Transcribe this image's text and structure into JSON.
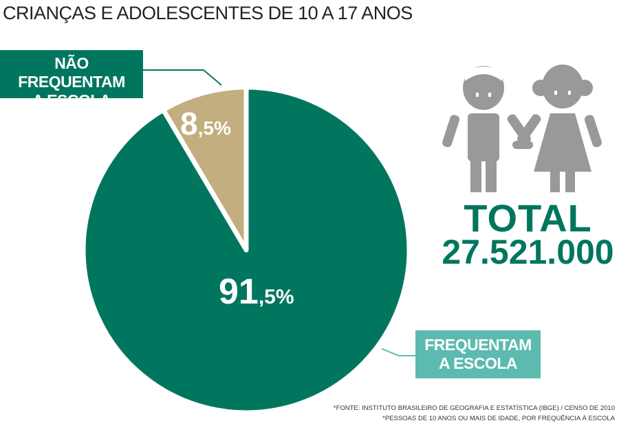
{
  "title": "CRIANÇAS E ADOLESCENTES DE 10 A 17 ANOS",
  "colors": {
    "attend": "#00765f",
    "not_attend": "#c2ae7e",
    "label_light": "#5cbab0",
    "icon": "#999999"
  },
  "chart_data": {
    "type": "pie",
    "title": "CRIANÇAS E ADOLESCENTES DE 10 A 17 ANOS",
    "slices": [
      {
        "label": "NÃO FREQUENTAM A ESCOLA",
        "value": 8.5,
        "display_int": "8",
        "display_dec": ",5%"
      },
      {
        "label": "FREQUENTAM A ESCOLA",
        "value": 91.5,
        "display_int": "91",
        "display_dec": ",5%"
      }
    ]
  },
  "labels": {
    "not_attend_l1": "NÃO FREQUENTAM",
    "not_attend_l2": "A ESCOLA",
    "attend_l1": "FREQUENTAM",
    "attend_l2": "A ESCOLA"
  },
  "total": {
    "label": "TOTAL",
    "value": "27.521.000"
  },
  "icon": "children-holding-hands-icon",
  "footnotes": [
    "*FONTE: INSTITUTO BRASILEIRO DE GEOGRAFIA E ESTATÍSTICA (IBGE) / CENSO DE 2010",
    "*PESSOAS DE 10 ANOS OU MAIS DE IDADE, POR FREQUÊNCIA À ESCOLA"
  ]
}
